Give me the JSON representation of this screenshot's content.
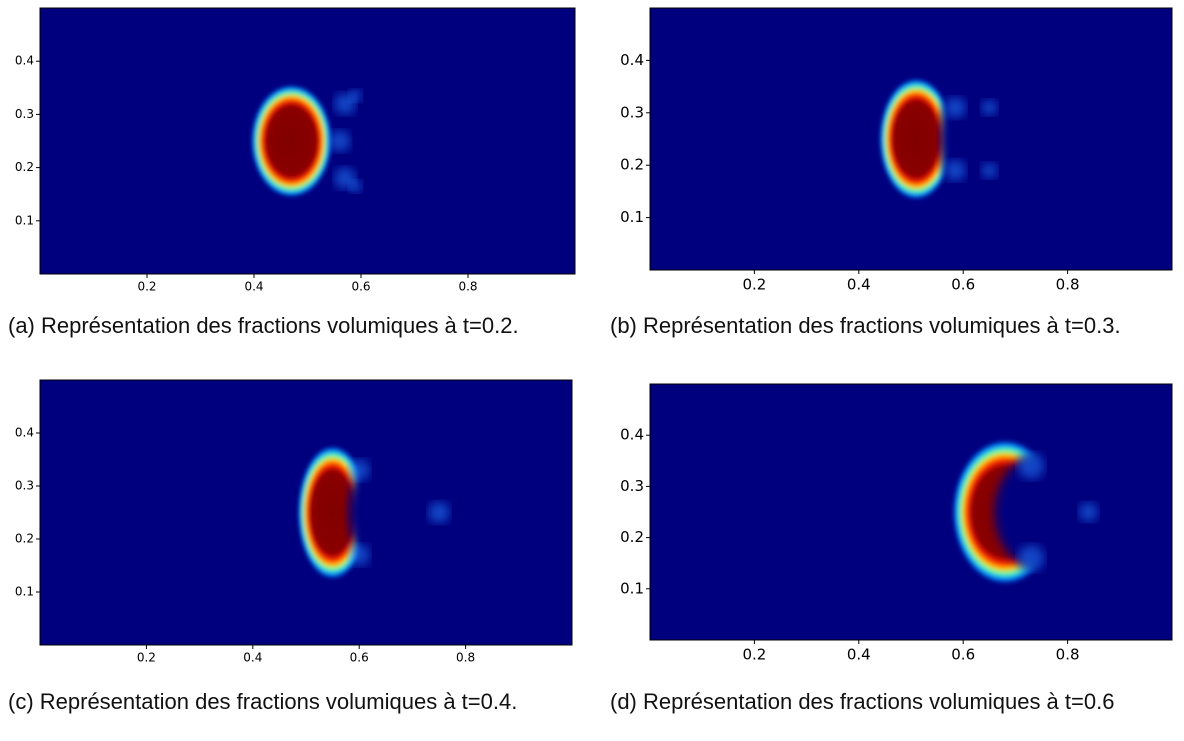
{
  "panels": [
    {
      "caption": "(a) Représentation des fractions volumiques à t=0.2.",
      "xlim": [
        0,
        1
      ],
      "ylim": [
        0,
        0.5
      ],
      "xticks": [
        0.2,
        0.4,
        0.6,
        0.8
      ],
      "yticks": [
        0.1,
        0.2,
        0.3,
        0.4
      ]
    },
    {
      "caption": "(b) Représentation des fractions volumiques à t=0.3.",
      "xlim": [
        0,
        1
      ],
      "ylim": [
        0,
        0.5
      ],
      "xticks": [
        0.2,
        0.4,
        0.6,
        0.8
      ],
      "yticks": [
        0.1,
        0.2,
        0.3,
        0.4
      ]
    },
    {
      "caption": "(c) Représentation des fractions volumiques à t=0.4.",
      "xlim": [
        0,
        1
      ],
      "ylim": [
        0,
        0.5
      ],
      "xticks": [
        0.2,
        0.4,
        0.6,
        0.8
      ],
      "yticks": [
        0.1,
        0.2,
        0.3,
        0.4
      ]
    },
    {
      "caption": "(d) Représentation des fractions volumiques à t=0.6",
      "xlim": [
        0,
        1
      ],
      "ylim": [
        0,
        0.5
      ],
      "xticks": [
        0.2,
        0.4,
        0.6,
        0.8
      ],
      "yticks": [
        0.1,
        0.2,
        0.3,
        0.4
      ]
    }
  ]
}
